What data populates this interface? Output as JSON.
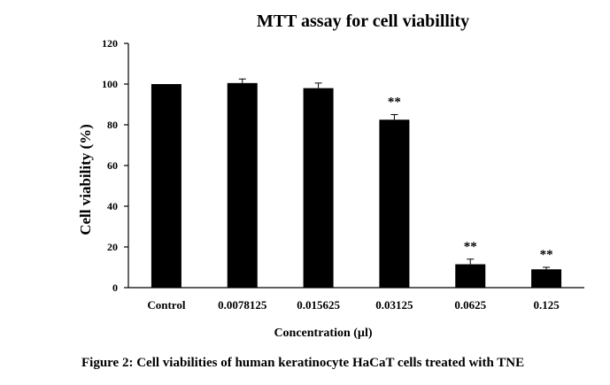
{
  "chart_data": {
    "type": "bar",
    "title": "MTT assay for cell viabillity",
    "xlabel": "Concentration (µl)",
    "ylabel": "Cell viability (%)",
    "categories": [
      "Control",
      "0.0078125",
      "0.015625",
      "0.03125",
      "0.0625",
      "0.125"
    ],
    "values": [
      100,
      100.5,
      98,
      82.5,
      11.5,
      9
    ],
    "errors": [
      0,
      2,
      2.5,
      2.5,
      2.5,
      1
    ],
    "significance": [
      "",
      "",
      "",
      "**",
      "**",
      "**"
    ],
    "ylim": [
      0,
      120
    ],
    "yticks": [
      0,
      20,
      40,
      60,
      80,
      100,
      120
    ],
    "bar_color": "#000000",
    "grid": false,
    "legend": "none"
  },
  "caption": "Figure 2: Cell viabilities of human keratinocyte HaCaT cells treated with TNE"
}
